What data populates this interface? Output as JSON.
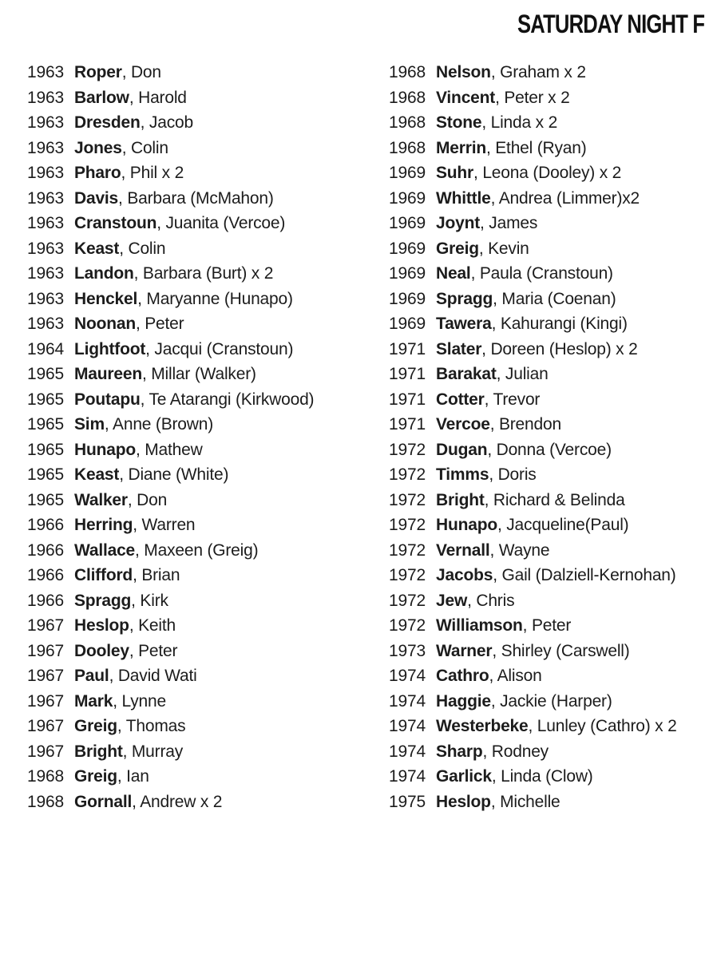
{
  "title": "SATURDAY NIGHT F",
  "colors": {
    "background": "#ffffff",
    "text": "#1c1c1c",
    "title_text": "#111111"
  },
  "columns": [
    {
      "entries": [
        {
          "year": "1963",
          "surname": "Roper",
          "detail": ", Don"
        },
        {
          "year": "1963",
          "surname": "Barlow",
          "detail": ", Harold"
        },
        {
          "year": "1963",
          "surname": "Dresden",
          "detail": ", Jacob"
        },
        {
          "year": "1963",
          "surname": "Jones",
          "detail": ", Colin"
        },
        {
          "year": "1963",
          "surname": "Pharo",
          "detail": ", Phil x 2"
        },
        {
          "year": "1963",
          "surname": "Davis",
          "detail": ", Barbara (McMahon)"
        },
        {
          "year": "1963",
          "surname": "Cranstoun",
          "detail": ", Juanita (Vercoe)"
        },
        {
          "year": "1963",
          "surname": "Keast",
          "detail": ", Colin"
        },
        {
          "year": "1963",
          "surname": "Landon",
          "detail": ", Barbara (Burt) x 2"
        },
        {
          "year": "1963",
          "surname": "Henckel",
          "detail": ", Maryanne (Hunapo)"
        },
        {
          "year": "1963",
          "surname": "Noonan",
          "detail": ", Peter"
        },
        {
          "year": "1964",
          "surname": "Lightfoot",
          "detail": ", Jacqui (Cranstoun)"
        },
        {
          "year": "1965",
          "surname": "Maureen",
          "detail": ", Millar (Walker)"
        },
        {
          "year": "1965",
          "surname": "Poutapu",
          "detail": ", Te Atarangi (Kirkwood)"
        },
        {
          "year": "1965",
          "surname": "Sim",
          "detail": ", Anne (Brown)"
        },
        {
          "year": "1965",
          "surname": "Hunapo",
          "detail": ", Mathew"
        },
        {
          "year": "1965",
          "surname": "Keast",
          "detail": ", Diane (White)"
        },
        {
          "year": "1965",
          "surname": "Walker",
          "detail": ", Don"
        },
        {
          "year": "1966",
          "surname": "Herring",
          "detail": ", Warren"
        },
        {
          "year": "1966",
          "surname": "Wallace",
          "detail": ", Maxeen (Greig)"
        },
        {
          "year": "1966",
          "surname": "Clifford",
          "detail": ", Brian"
        },
        {
          "year": "1966",
          "surname": "Spragg",
          "detail": ", Kirk"
        },
        {
          "year": "1967",
          "surname": "Heslop",
          "detail": ", Keith"
        },
        {
          "year": "1967",
          "surname": "Dooley",
          "detail": ", Peter"
        },
        {
          "year": "1967",
          "surname": "Paul",
          "detail": ", David Wati"
        },
        {
          "year": "1967",
          "surname": "Mark",
          "detail": ", Lynne"
        },
        {
          "year": "1967",
          "surname": "Greig",
          "detail": ", Thomas"
        },
        {
          "year": "1967",
          "surname": "Bright",
          "detail": ", Murray"
        },
        {
          "year": "1968",
          "surname": "Greig",
          "detail": ", Ian"
        },
        {
          "year": "1968",
          "surname": "Gornall",
          "detail": ", Andrew x 2"
        }
      ]
    },
    {
      "entries": [
        {
          "year": "1968",
          "surname": "Nelson",
          "detail": ", Graham x 2"
        },
        {
          "year": "1968",
          "surname": "Vincent",
          "detail": ", Peter x 2"
        },
        {
          "year": "1968",
          "surname": "Stone",
          "detail": ", Linda x 2"
        },
        {
          "year": "1968",
          "surname": "Merrin",
          "detail": ", Ethel (Ryan)"
        },
        {
          "year": "1969",
          "surname": "Suhr",
          "detail": ", Leona (Dooley) x 2"
        },
        {
          "year": "1969",
          "surname": "Whittle",
          "detail": ", Andrea (Limmer)x2"
        },
        {
          "year": "1969",
          "surname": "Joynt",
          "detail": ", James"
        },
        {
          "year": "1969",
          "surname": "Greig",
          "detail": ", Kevin"
        },
        {
          "year": "1969",
          "surname": "Neal",
          "detail": ", Paula (Cranstoun)"
        },
        {
          "year": "1969",
          "surname": "Spragg",
          "detail": ", Maria (Coenan)"
        },
        {
          "year": "1969",
          "surname": "Tawera",
          "detail": ", Kahurangi (Kingi)"
        },
        {
          "year": "1971",
          "surname": "Slater",
          "detail": ", Doreen (Heslop) x 2"
        },
        {
          "year": "1971",
          "surname": "Barakat",
          "detail": ", Julian"
        },
        {
          "year": "1971",
          "surname": "Cotter",
          "detail": ", Trevor"
        },
        {
          "year": "1971",
          "surname": "Vercoe",
          "detail": ", Brendon"
        },
        {
          "year": "1972",
          "surname": "Dugan",
          "detail": ", Donna (Vercoe)"
        },
        {
          "year": "1972",
          "surname": "Timms",
          "detail": ", Doris"
        },
        {
          "year": "1972",
          "surname": "Bright",
          "detail": ", Richard & Belinda"
        },
        {
          "year": "1972",
          "surname": "Hunapo",
          "detail": ", Jacqueline(Paul)"
        },
        {
          "year": "1972",
          "surname": "Vernall",
          "detail": ", Wayne"
        },
        {
          "year": "1972",
          "surname": "Jacobs",
          "detail": ", Gail (Dalziell-Kernohan)"
        },
        {
          "year": "1972",
          "surname": "Jew",
          "detail": ", Chris"
        },
        {
          "year": "1972",
          "surname": "Williamson",
          "detail": ", Peter"
        },
        {
          "year": "1973",
          "surname": "Warner",
          "detail": ", Shirley (Carswell)"
        },
        {
          "year": "1974",
          "surname": "Cathro",
          "detail": ", Alison"
        },
        {
          "year": "1974",
          "surname": "Haggie",
          "detail": ", Jackie (Harper)"
        },
        {
          "year": "1974",
          "surname": "Westerbeke",
          "detail": ", Lunley (Cathro) x 2"
        },
        {
          "year": "1974",
          "surname": "Sharp",
          "detail": ", Rodney"
        },
        {
          "year": "1974",
          "surname": "Garlick",
          "detail": ", Linda (Clow)"
        },
        {
          "year": "1975",
          "surname": "Heslop",
          "detail": ", Michelle"
        }
      ]
    }
  ]
}
